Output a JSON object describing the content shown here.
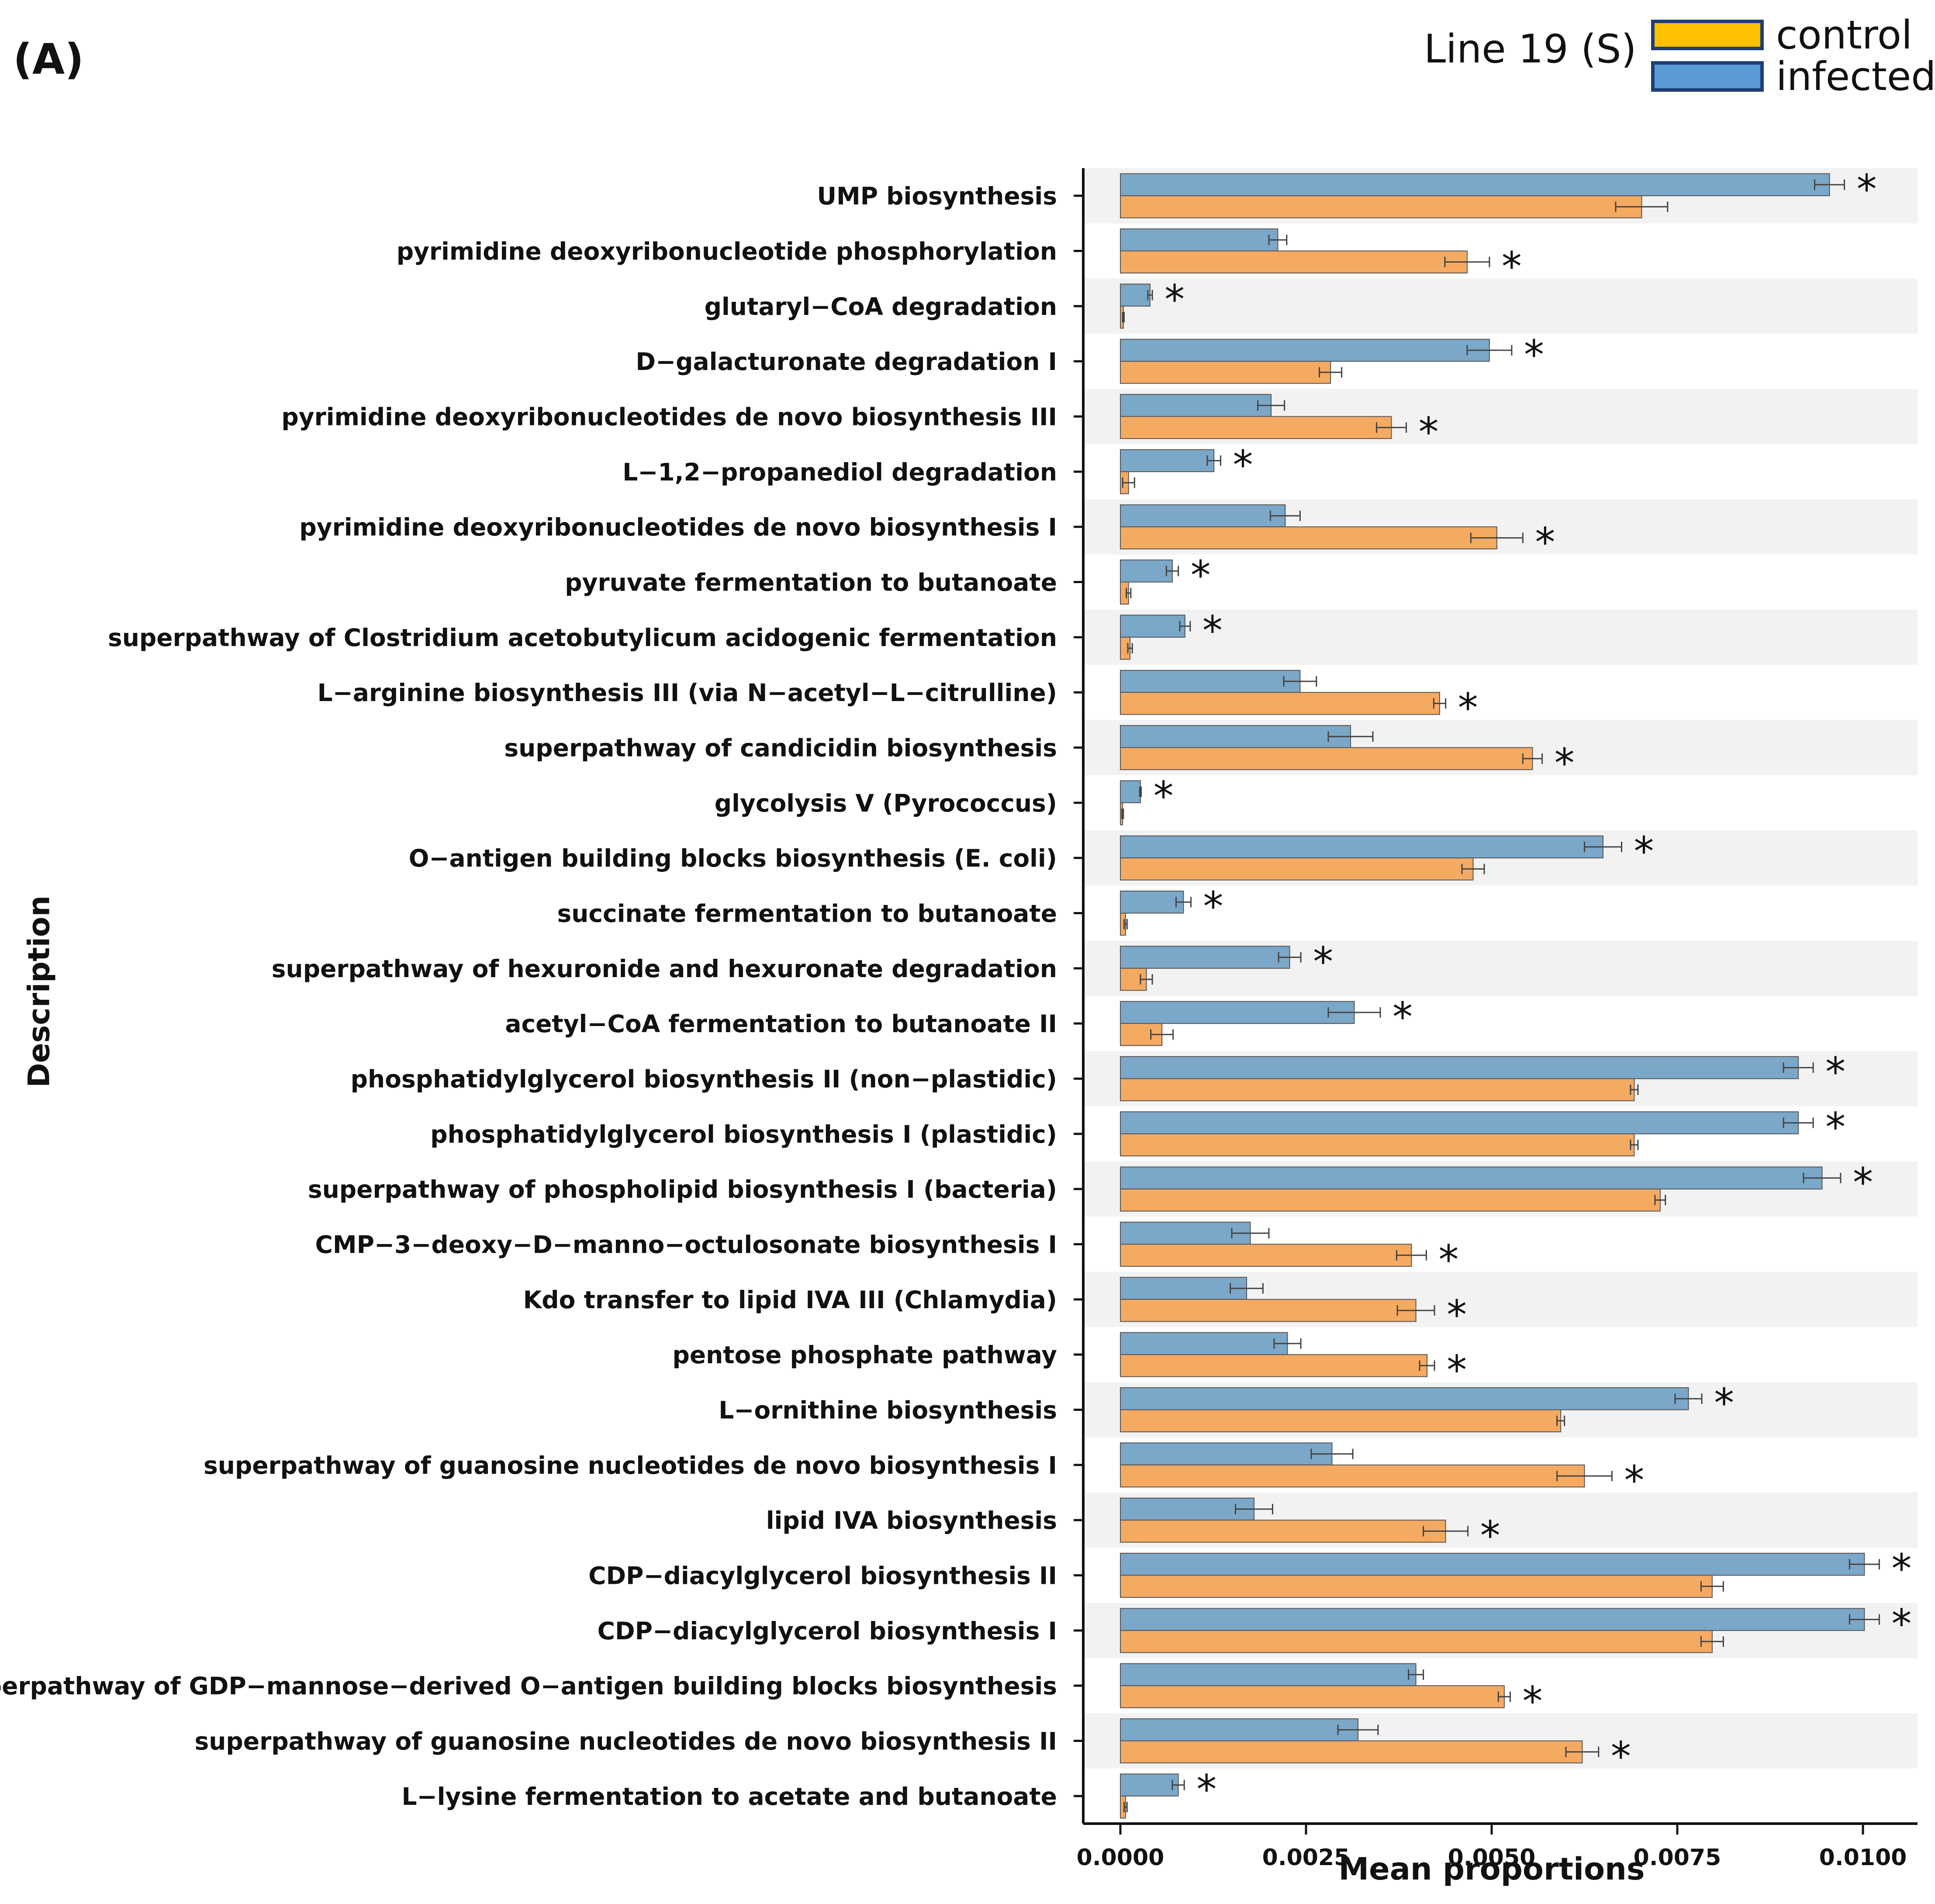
{
  "panel_label": "(A)",
  "legend": {
    "title": "Line 19 (S)",
    "items": [
      {
        "label": "control",
        "color": "#FFC000"
      },
      {
        "label": "infected",
        "color": "#5B9BD5"
      }
    ]
  },
  "chart_data": {
    "type": "bar",
    "orientation": "horizontal",
    "title": "",
    "xlabel": "Mean proportions",
    "ylabel": "Description",
    "xlim": [
      -0.0005,
      0.0106
    ],
    "xticks": [
      "0.0000",
      "0.0025",
      "0.0050",
      "0.0075",
      "0.0100"
    ],
    "xtick_values": [
      0,
      0.0025,
      0.005,
      0.0075,
      0.01
    ],
    "significance_marker": "*",
    "series_colors": {
      "infected": "#7BA7C8",
      "control": "#F5AA62"
    },
    "categories": [
      "UMP biosynthesis",
      "pyrimidine deoxyribonucleotide phosphorylation",
      "glutaryl−CoA degradation",
      "D−galacturonate degradation I",
      "pyrimidine deoxyribonucleotides de novo biosynthesis III",
      "L−1,2−propanediol degradation",
      "pyrimidine deoxyribonucleotides de novo biosynthesis I",
      "pyruvate fermentation to butanoate",
      "superpathway of Clostridium acetobutylicum acidogenic fermentation",
      "L−arginine biosynthesis III (via N−acetyl−L−citrulline)",
      "superpathway of candicidin biosynthesis",
      "glycolysis V (Pyrococcus)",
      "O−antigen building blocks biosynthesis (E. coli)",
      "succinate fermentation to butanoate",
      "superpathway of hexuronide and hexuronate degradation",
      "acetyl−CoA fermentation to butanoate II",
      "phosphatidylglycerol biosynthesis II (non−plastidic)",
      "phosphatidylglycerol biosynthesis I (plastidic)",
      "superpathway of phospholipid biosynthesis I (bacteria)",
      "CMP−3−deoxy−D−manno−octulosonate biosynthesis I",
      "Kdo transfer to lipid IVA III (Chlamydia)",
      "pentose phosphate pathway",
      "L−ornithine biosynthesis",
      "superpathway of guanosine nucleotides de novo biosynthesis I",
      "lipid IVA biosynthesis",
      "CDP−diacylglycerol biosynthesis II",
      "CDP−diacylglycerol biosynthesis I",
      "superpathway of GDP−mannose−derived O−antigen building blocks biosynthesis",
      "superpathway of guanosine nucleotides de novo biosynthesis II",
      "L−lysine fermentation to acetate and butanoate"
    ],
    "series": [
      {
        "name": "infected",
        "values": [
          0.00955,
          0.00212,
          0.0004,
          0.00497,
          0.00203,
          0.00126,
          0.00222,
          0.0007,
          0.00087,
          0.00242,
          0.0031,
          0.00027,
          0.0065,
          0.00085,
          0.00228,
          0.00315,
          0.00913,
          0.00913,
          0.00945,
          0.00175,
          0.0017,
          0.00225,
          0.00765,
          0.00285,
          0.0018,
          0.01002,
          0.01002,
          0.00398,
          0.0032,
          0.00078
        ],
        "errors": [
          0.0002,
          0.00012,
          3e-05,
          0.0003,
          0.00018,
          9e-05,
          0.0002,
          8e-05,
          7e-05,
          0.00022,
          0.0003,
          1e-05,
          0.00025,
          0.0001,
          0.00015,
          0.00035,
          0.0002,
          0.0002,
          0.00025,
          0.00025,
          0.00022,
          0.00018,
          0.00018,
          0.00028,
          0.00025,
          0.0002,
          0.0002,
          0.0001,
          0.00027,
          8e-05
        ],
        "significant": [
          true,
          false,
          true,
          true,
          false,
          true,
          false,
          true,
          true,
          false,
          false,
          true,
          true,
          true,
          true,
          true,
          true,
          true,
          true,
          false,
          false,
          false,
          true,
          false,
          false,
          true,
          true,
          false,
          false,
          true
        ]
      },
      {
        "name": "control",
        "values": [
          0.00702,
          0.00467,
          4e-05,
          0.00283,
          0.00365,
          0.00011,
          0.00507,
          0.00011,
          0.00013,
          0.0043,
          0.00555,
          3e-05,
          0.00475,
          7e-05,
          0.00035,
          0.00056,
          0.00692,
          0.00692,
          0.00727,
          0.00392,
          0.00398,
          0.00413,
          0.00593,
          0.00625,
          0.00438,
          0.00797,
          0.00797,
          0.00517,
          0.00622,
          7e-05
        ],
        "errors": [
          0.00035,
          0.0003,
          1e-05,
          0.00015,
          0.0002,
          8e-05,
          0.00035,
          3e-05,
          3e-05,
          8e-05,
          0.00013,
          1e-05,
          0.00015,
          2e-05,
          8e-05,
          0.00015,
          5e-05,
          5e-05,
          7e-05,
          0.0002,
          0.00025,
          0.0001,
          5e-05,
          0.00037,
          0.0003,
          0.00015,
          0.00015,
          8e-05,
          0.00022,
          2e-05
        ],
        "significant": [
          false,
          true,
          false,
          false,
          true,
          false,
          true,
          false,
          false,
          true,
          true,
          false,
          false,
          false,
          false,
          false,
          false,
          false,
          false,
          true,
          true,
          true,
          false,
          true,
          true,
          false,
          false,
          true,
          true,
          false
        ]
      }
    ]
  }
}
